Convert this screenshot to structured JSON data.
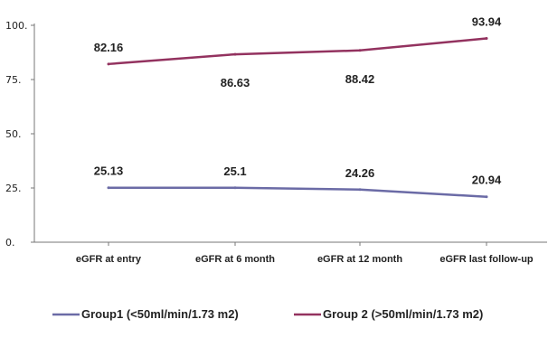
{
  "chart_data": {
    "type": "line",
    "title": "",
    "xlabel": "",
    "ylabel": "",
    "categories": [
      "eGFR at entry",
      "eGFR at 6 month",
      "eGFR at 12 month",
      "eGFR last follow-up"
    ],
    "ylim": [
      0,
      100
    ],
    "yticks": [
      0,
      25,
      50,
      75,
      100
    ],
    "ytick_labels": [
      "0.",
      "25.",
      "50.",
      "75.",
      "100."
    ],
    "grid": false,
    "legend_position": "bottom",
    "series": [
      {
        "name": "Group1 (<50ml/min/1.73 m2)",
        "values": [
          25.13,
          25.1,
          24.26,
          20.94
        ],
        "labels": [
          "25.13",
          "25.1",
          "24.26",
          "20.94"
        ],
        "label_placement": [
          "above",
          "above",
          "above",
          "above"
        ],
        "color": "#6B6BA6"
      },
      {
        "name": "Group 2 (>50ml/min/1.73 m2)",
        "values": [
          82.16,
          86.63,
          88.42,
          93.94
        ],
        "labels": [
          "82.16",
          "86.63",
          "88.42",
          "93.94"
        ],
        "label_placement": [
          "above",
          "below",
          "below",
          "above"
        ],
        "color": "#93325F"
      }
    ]
  }
}
